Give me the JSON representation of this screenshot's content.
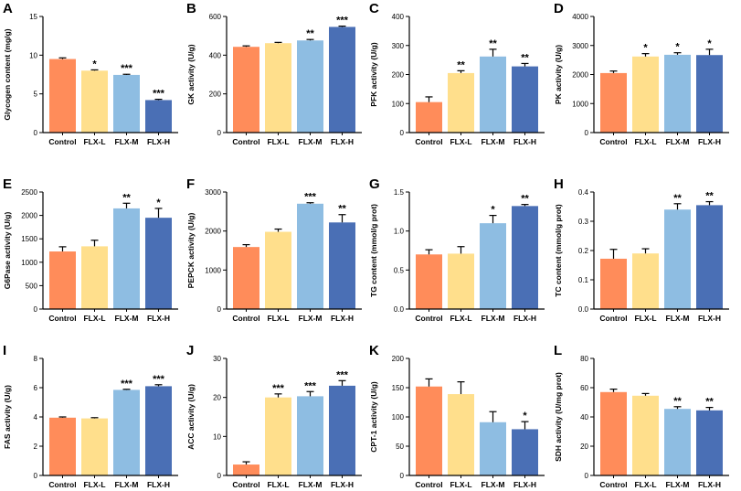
{
  "colors": [
    "#FF8C5A",
    "#FFDF8C",
    "#8EBDE2",
    "#4A6FB5"
  ],
  "chart_data": [
    {
      "type": "bar",
      "panel": "A",
      "categories": [
        "Control",
        "FLX-L",
        "FLX-M",
        "FLX-H"
      ],
      "values": [
        9.5,
        8.0,
        7.45,
        4.2
      ],
      "errors": [
        0.15,
        0.1,
        0.08,
        0.1
      ],
      "sig": [
        "",
        "*",
        "***",
        "***"
      ],
      "ylabel": "Glycogen content (mg/g)",
      "ylim": [
        0,
        15
      ],
      "yticks": [
        0,
        5,
        10,
        15
      ]
    },
    {
      "type": "bar",
      "panel": "B",
      "categories": [
        "Control",
        "FLX-L",
        "FLX-M",
        "FLX-H"
      ],
      "values": [
        443,
        462,
        476,
        546
      ],
      "errors": [
        5,
        4,
        5,
        4
      ],
      "sig": [
        "",
        "",
        "**",
        "***"
      ],
      "ylabel": "GK activity (U/g)",
      "ylim": [
        0,
        600
      ],
      "yticks": [
        0,
        200,
        400,
        600
      ]
    },
    {
      "type": "bar",
      "panel": "C",
      "categories": [
        "Control",
        "FLX-L",
        "FLX-M",
        "FLX-H"
      ],
      "values": [
        105,
        205,
        262,
        228
      ],
      "errors": [
        18,
        8,
        25,
        10
      ],
      "sig": [
        "",
        "**",
        "**",
        "**"
      ],
      "ylabel": "PFK activity (U/g)",
      "ylim": [
        0,
        400
      ],
      "yticks": [
        0,
        100,
        200,
        300,
        400
      ]
    },
    {
      "type": "bar",
      "panel": "D",
      "categories": [
        "Control",
        "FLX-L",
        "FLX-M",
        "FLX-H"
      ],
      "values": [
        2050,
        2620,
        2680,
        2670
      ],
      "errors": [
        70,
        100,
        70,
        200
      ],
      "sig": [
        "",
        "*",
        "*",
        "*"
      ],
      "ylabel": "PK activity (U/g)",
      "ylim": [
        0,
        4000
      ],
      "yticks": [
        0,
        1000,
        2000,
        3000,
        4000
      ]
    },
    {
      "type": "bar",
      "panel": "E",
      "categories": [
        "Control",
        "FLX-L",
        "FLX-M",
        "FLX-H"
      ],
      "values": [
        1230,
        1340,
        2150,
        1950
      ],
      "errors": [
        100,
        130,
        110,
        200
      ],
      "sig": [
        "",
        "",
        "**",
        "*"
      ],
      "ylabel": "G6Pase activity (U/g)",
      "ylim": [
        0,
        2500
      ],
      "yticks": [
        0,
        500,
        1000,
        1500,
        2000,
        2500
      ]
    },
    {
      "type": "bar",
      "panel": "F",
      "categories": [
        "Control",
        "FLX-L",
        "FLX-M",
        "FLX-H"
      ],
      "values": [
        1590,
        1980,
        2700,
        2220
      ],
      "errors": [
        60,
        70,
        25,
        200
      ],
      "sig": [
        "",
        "",
        "***",
        "**"
      ],
      "ylabel": "PEPCK activity (U/g)",
      "ylim": [
        0,
        3000
      ],
      "yticks": [
        0,
        1000,
        2000,
        3000
      ]
    },
    {
      "type": "bar",
      "panel": "G",
      "categories": [
        "Control",
        "FLX-L",
        "FLX-M",
        "FLX-H"
      ],
      "values": [
        0.7,
        0.71,
        1.1,
        1.32
      ],
      "errors": [
        0.06,
        0.09,
        0.1,
        0.02
      ],
      "sig": [
        "",
        "",
        "*",
        "**"
      ],
      "ylabel": "TG content (mmol/g prot)",
      "ylim": [
        0,
        1.5
      ],
      "yticks": [
        0.0,
        0.5,
        1.0,
        1.5
      ]
    },
    {
      "type": "bar",
      "panel": "H",
      "categories": [
        "Control",
        "FLX-L",
        "FLX-M",
        "FLX-H"
      ],
      "values": [
        0.172,
        0.19,
        0.34,
        0.355
      ],
      "errors": [
        0.032,
        0.016,
        0.02,
        0.012
      ],
      "sig": [
        "",
        "",
        "**",
        "**"
      ],
      "ylabel": "TC content (mmol/g prot)",
      "ylim": [
        0,
        0.4
      ],
      "yticks": [
        0.0,
        0.1,
        0.2,
        0.3,
        0.4
      ]
    },
    {
      "type": "bar",
      "panel": "I",
      "categories": [
        "Control",
        "FLX-L",
        "FLX-M",
        "FLX-H"
      ],
      "values": [
        3.95,
        3.9,
        5.85,
        6.1
      ],
      "errors": [
        0.05,
        0.05,
        0.04,
        0.1
      ],
      "sig": [
        "",
        "",
        "***",
        "***"
      ],
      "ylabel": "FAS activity (U/g)",
      "ylim": [
        0,
        8
      ],
      "yticks": [
        0,
        2,
        4,
        6,
        8
      ]
    },
    {
      "type": "bar",
      "panel": "J",
      "categories": [
        "Control",
        "FLX-L",
        "FLX-M",
        "FLX-H"
      ],
      "values": [
        2.8,
        20.0,
        20.3,
        23.0
      ],
      "errors": [
        0.7,
        0.9,
        1.2,
        1.3
      ],
      "sig": [
        "",
        "***",
        "***",
        "***"
      ],
      "ylabel": "ACC activity (U/g)",
      "ylim": [
        0,
        30
      ],
      "yticks": [
        0,
        10,
        20,
        30
      ]
    },
    {
      "type": "bar",
      "panel": "K",
      "categories": [
        "Control",
        "FLX-L",
        "FLX-M",
        "FLX-H"
      ],
      "values": [
        152,
        139,
        91,
        79
      ],
      "errors": [
        13,
        21,
        18,
        13
      ],
      "sig": [
        "",
        "",
        "",
        "*"
      ],
      "ylabel": "CPT-1 activity (U/g)",
      "ylim": [
        0,
        200
      ],
      "yticks": [
        0,
        50,
        100,
        150,
        200
      ]
    },
    {
      "type": "bar",
      "panel": "L",
      "categories": [
        "Control",
        "FLX-L",
        "FLX-M",
        "FLX-H"
      ],
      "values": [
        57,
        54.5,
        45.5,
        44.5
      ],
      "errors": [
        2,
        1.5,
        1.5,
        2
      ],
      "sig": [
        "",
        "",
        "**",
        "**"
      ],
      "ylabel": "SDH activity (U/mg prot)",
      "ylim": [
        0,
        80
      ],
      "yticks": [
        0,
        20,
        40,
        60,
        80
      ]
    }
  ]
}
